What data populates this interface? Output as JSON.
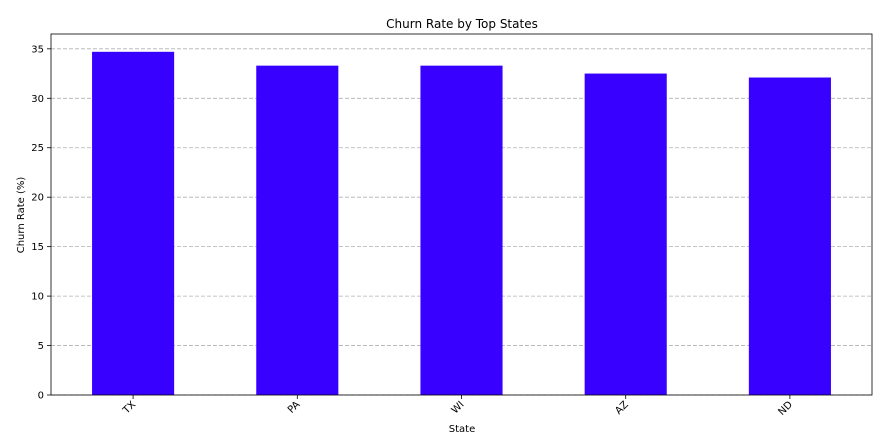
{
  "chart_data": {
    "type": "bar",
    "title": "Churn Rate by Top States",
    "xlabel": "State",
    "ylabel": "Churn Rate (%)",
    "categories": [
      "TX",
      "PA",
      "WI",
      "AZ",
      "ND"
    ],
    "values": [
      34.7,
      33.3,
      33.3,
      32.5,
      32.1
    ],
    "ylim": [
      0,
      36.5
    ],
    "yticks": [
      0,
      5,
      10,
      15,
      20,
      25,
      30,
      35
    ],
    "grid": "y",
    "bar_color": "#3800ff"
  }
}
